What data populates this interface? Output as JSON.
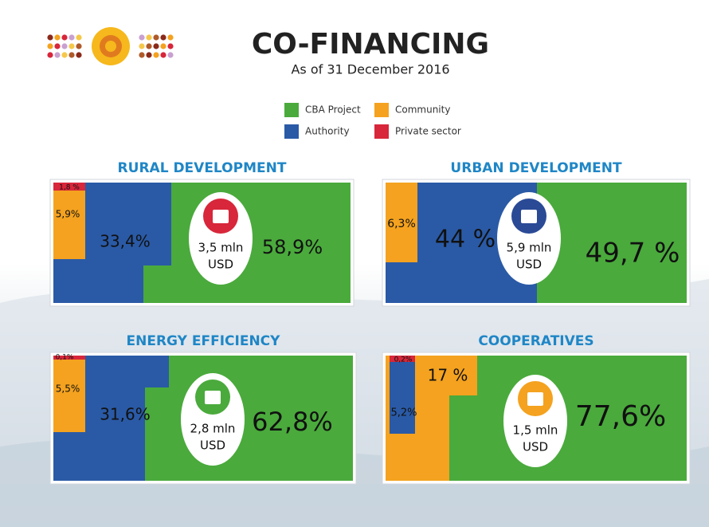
{
  "header": {
    "title": "CO-FINANCING",
    "subtitle": "As of 31 December 2016"
  },
  "legend": [
    {
      "key": "cba",
      "label": "CBA Project",
      "color": "#4aaa3c"
    },
    {
      "key": "community",
      "label": "Community",
      "color": "#f4a21f"
    },
    {
      "key": "authority",
      "label": "Authority",
      "color": "#2a5aa6"
    },
    {
      "key": "private",
      "label": "Private sector",
      "color": "#d8263a"
    }
  ],
  "panels": [
    {
      "title": "RURAL DEVELOPMENT",
      "total": "3,5 mln",
      "unit": "USD",
      "icon_color": "#d8263a",
      "shares": {
        "private": "1,8 %",
        "community": "5,9%",
        "authority": "33,4%",
        "cba": "58,9%"
      }
    },
    {
      "title": "URBAN DEVELOPMENT",
      "total": "5,9 mln",
      "unit": "USD",
      "icon_color": "#2a4a96",
      "shares": {
        "community": "6,3%",
        "authority": "44 %",
        "cba": "49,7 %"
      }
    },
    {
      "title": "ENERGY EFFICIENCY",
      "total": "2,8 mln",
      "unit": "USD",
      "icon_color": "#4aaa3c",
      "shares": {
        "private": "0,1%",
        "community": "5,5%",
        "authority": "31,6%",
        "cba": "62,8%"
      }
    },
    {
      "title": "COOPERATIVES",
      "total": "1,5 mln",
      "unit": "USD",
      "icon_color": "#f4a21f",
      "shares": {
        "private": "0,2%",
        "authority": "5,2%",
        "community": "17 %",
        "cba": "77,6%"
      }
    }
  ]
}
